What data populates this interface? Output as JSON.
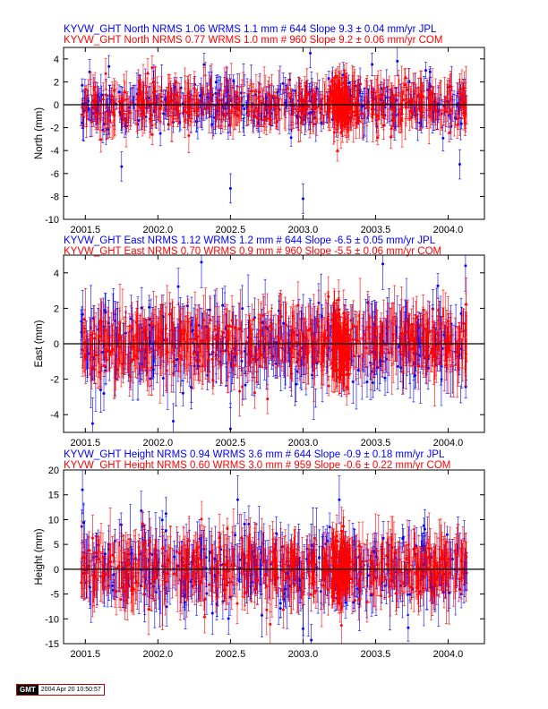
{
  "colors": {
    "jpl": "#0000ff",
    "com": "#ff0000",
    "axis": "#000000"
  },
  "stamp": {
    "logo": "GMT",
    "time": "2004 Apr 20 10:50:57"
  },
  "chart_data": [
    {
      "type": "scatter",
      "component": "North",
      "ylabel": "North (mm)",
      "xlim": [
        2001.35,
        2004.25
      ],
      "ylim": [
        -10,
        5
      ],
      "yticks": [
        -10,
        -8,
        -6,
        -4,
        -2,
        0,
        2,
        4
      ],
      "xticks": [
        2001.5,
        2002.0,
        2002.5,
        2003.0,
        2003.5,
        2004.0
      ],
      "xtick_labels": [
        "2001.5",
        "2002.0",
        "2002.5",
        "2003.0",
        "2003.5",
        "2004.0"
      ],
      "titles": [
        "KYVW_GHT North NRMS 1.06 WRMS  1.1 mm # 644 Slope    9.3 ±  0.04 mm/yr JPL",
        "KYVW_GHT North NRMS 0.77 WRMS  1.0 mm # 960 Slope    9.2 ±  0.06 mm/yr COM"
      ],
      "series": [
        {
          "name": "JPL",
          "n": 644,
          "x_range": [
            2001.47,
            2004.13
          ],
          "scatter_sd": 1.1,
          "typical_error": 0.8
        },
        {
          "name": "COM",
          "n": 960,
          "x_range": [
            2001.47,
            2004.13
          ],
          "scatter_sd": 1.0,
          "typical_error": 1.0,
          "dense_cluster_x": [
            2003.2,
            2003.32
          ]
        }
      ],
      "outliers": [
        {
          "x": 2001.75,
          "y": -5.4
        },
        {
          "x": 2002.5,
          "y": -7.3
        },
        {
          "x": 2003.0,
          "y": -8.2
        },
        {
          "x": 2003.05,
          "y": 4.5
        },
        {
          "x": 2004.08,
          "y": -5.2
        },
        {
          "x": 2003.65,
          "y": 3.8
        }
      ]
    },
    {
      "type": "scatter",
      "component": "East",
      "ylabel": "East (mm)",
      "xlim": [
        2001.35,
        2004.25
      ],
      "ylim": [
        -5,
        5
      ],
      "yticks": [
        -4,
        -2,
        0,
        2,
        4
      ],
      "xticks": [
        2001.5,
        2002.0,
        2002.5,
        2003.0,
        2003.5,
        2004.0
      ],
      "xtick_labels": [
        "2001.5",
        "2002.0",
        "2002.5",
        "2003.0",
        "2003.5",
        "2004.0"
      ],
      "titles": [
        "KYVW_GHT East NRMS 1.12 WRMS  1.2 mm # 644 Slope   -6.5 ±  0.05 mm/yr JPL",
        "KYVW_GHT East NRMS 0.70 WRMS  0.9 mm # 960 Slope   -5.5 ±  0.06 mm/yr COM"
      ],
      "series": [
        {
          "name": "JPL",
          "n": 644,
          "x_range": [
            2001.47,
            2004.13
          ],
          "scatter_sd": 1.2,
          "typical_error": 0.9
        },
        {
          "name": "COM",
          "n": 960,
          "x_range": [
            2001.47,
            2004.13
          ],
          "scatter_sd": 0.9,
          "typical_error": 1.0,
          "dense_cluster_x": [
            2003.2,
            2003.32
          ]
        }
      ],
      "outliers": [
        {
          "x": 2001.55,
          "y": -4.5
        },
        {
          "x": 2002.3,
          "y": 4.6
        },
        {
          "x": 2003.55,
          "y": 4.5
        },
        {
          "x": 2004.12,
          "y": 4.4
        },
        {
          "x": 2002.5,
          "y": -4.8
        }
      ]
    },
    {
      "type": "scatter",
      "component": "Height",
      "ylabel": "Height (mm)",
      "xlim": [
        2001.35,
        2004.25
      ],
      "ylim": [
        -15,
        20
      ],
      "yticks": [
        -15,
        -10,
        -5,
        0,
        5,
        10,
        15,
        20
      ],
      "xticks": [
        2001.5,
        2002.0,
        2002.5,
        2003.0,
        2003.5,
        2004.0
      ],
      "xtick_labels": [
        "2001.5",
        "2002.0",
        "2002.5",
        "2003.0",
        "2003.5",
        "2004.0"
      ],
      "titles": [
        "KYVW_GHT Height NRMS 0.94 WRMS  3.6 mm # 644 Slope   -0.9 ±  0.18 mm/yr JPL",
        "KYVW_GHT Height NRMS 0.60 WRMS  3.0 mm # 959 Slope   -0.6 ±  0.22 mm/yr COM"
      ],
      "series": [
        {
          "name": "JPL",
          "n": 644,
          "x_range": [
            2001.47,
            2004.13
          ],
          "scatter_sd": 3.6,
          "typical_error": 3.0
        },
        {
          "name": "COM",
          "n": 959,
          "x_range": [
            2001.47,
            2004.13
          ],
          "scatter_sd": 3.0,
          "typical_error": 3.5,
          "dense_cluster_x": [
            2003.2,
            2003.32
          ]
        }
      ],
      "outliers": [
        {
          "x": 2001.48,
          "y": 16.0
        },
        {
          "x": 2003.0,
          "y": -12.0
        },
        {
          "x": 2002.55,
          "y": 14.0
        },
        {
          "x": 2003.25,
          "y": 14.0
        }
      ]
    }
  ]
}
